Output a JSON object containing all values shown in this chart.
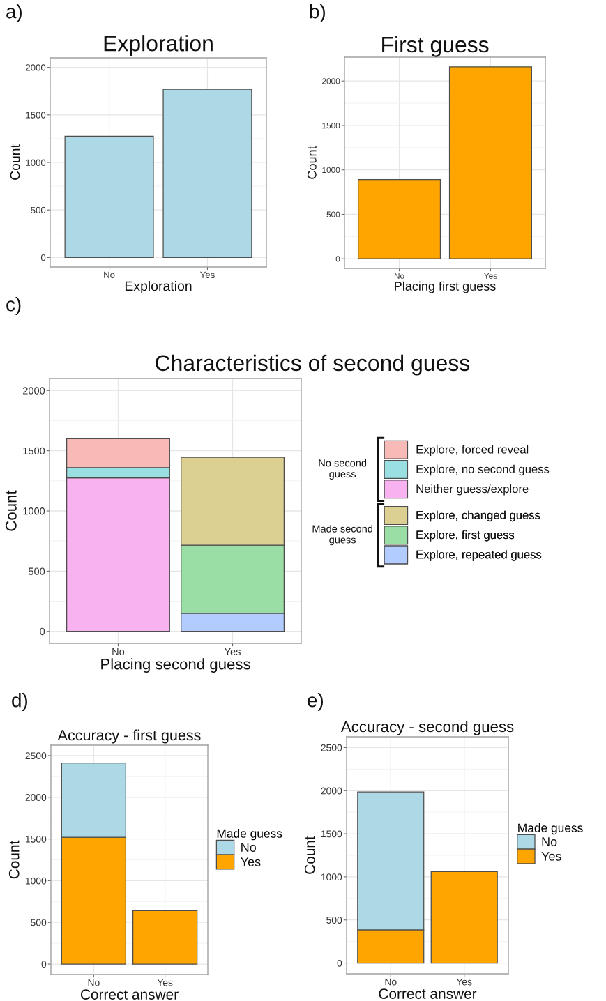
{
  "chart_data": [
    {
      "type": "bar",
      "title": "Exploration",
      "xlabel": "Exploration",
      "ylabel": "Count",
      "categories": [
        "No",
        "Yes"
      ],
      "values": [
        1275,
        1770
      ],
      "color": "#add8e6",
      "ylim": [
        -100,
        2100
      ],
      "yticks": [
        0,
        500,
        1000,
        1500,
        2000
      ],
      "grid": true,
      "annotations": [
        "a)"
      ]
    },
    {
      "type": "bar",
      "title": "First guess",
      "xlabel": "Placing first guess",
      "ylabel": "Count",
      "categories": [
        "No",
        "Yes"
      ],
      "values": [
        890,
        2160
      ],
      "color": "#ffa500",
      "ylim": [
        -108,
        2268
      ],
      "yticks": [
        0,
        500,
        1000,
        1500,
        2000
      ],
      "grid": true,
      "annotations": [
        "b)"
      ]
    },
    {
      "type": "bar",
      "title": "Characteristics of second guess",
      "xlabel": "Placing second guess",
      "ylabel": "Count",
      "categories": [
        "No",
        "Yes"
      ],
      "stacked": true,
      "series": [
        {
          "name": "Explore, repeated guess",
          "color": "#b3ccff",
          "values": [
            null,
            150
          ]
        },
        {
          "name": "Explore, first guess",
          "color": "#9bdea5",
          "values": [
            null,
            565
          ]
        },
        {
          "name": "Explore, changed guess",
          "color": "#dbcf92",
          "values": [
            null,
            730
          ]
        },
        {
          "name": "Neither guess/explore",
          "color": "#f8b2ef",
          "values": [
            1275,
            null
          ]
        },
        {
          "name": "Explore, no second guess",
          "color": "#9adfe2",
          "values": [
            85,
            null
          ]
        },
        {
          "name": "Explore, forced reveal",
          "color": "#f8bab6",
          "values": [
            240,
            null
          ]
        }
      ],
      "ylim": [
        -100,
        2100
      ],
      "yticks": [
        0,
        500,
        1000,
        1500,
        2000
      ],
      "grid": true,
      "legend": "right",
      "annotations": [
        "c)",
        "No second\nguess",
        "Made second\nguess"
      ]
    },
    {
      "type": "bar",
      "title": "Accuracy - first guess",
      "xlabel": "Correct answer",
      "ylabel": "Count",
      "categories": [
        "No",
        "Yes"
      ],
      "stacked": true,
      "series": [
        {
          "name": "Yes",
          "color": "#ffa500",
          "values": [
            1520,
            640
          ]
        },
        {
          "name": "No",
          "color": "#add8e6",
          "values": [
            890,
            null
          ]
        }
      ],
      "ylim": [
        -125,
        2625
      ],
      "yticks": [
        0,
        500,
        1000,
        1500,
        2000,
        2500
      ],
      "grid": true,
      "legend": "right",
      "legend_title": "Made guess",
      "annotations": [
        "d)"
      ]
    },
    {
      "type": "bar",
      "title": "Accuracy - second guess",
      "xlabel": "Correct answer",
      "ylabel": "Count",
      "categories": [
        "No",
        "Yes"
      ],
      "stacked": true,
      "series": [
        {
          "name": "Yes",
          "color": "#ffa500",
          "values": [
            385,
            1060
          ]
        },
        {
          "name": "No",
          "color": "#add8e6",
          "values": [
            1600,
            null
          ]
        }
      ],
      "ylim": [
        -125,
        2625
      ],
      "yticks": [
        0,
        500,
        1000,
        1500,
        2000,
        2500
      ],
      "grid": true,
      "legend": "right",
      "legend_title": "Made guess",
      "annotations": [
        "e)"
      ]
    }
  ]
}
